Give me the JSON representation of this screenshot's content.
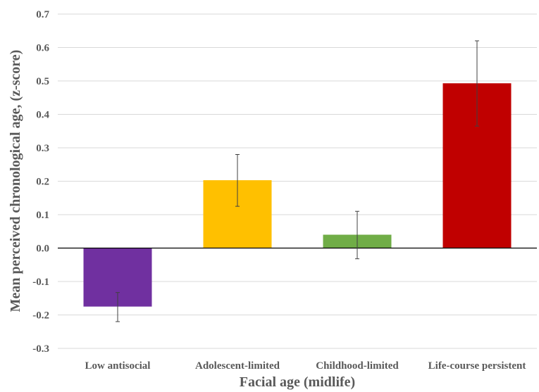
{
  "chart_data": {
    "type": "bar",
    "title": "",
    "xlabel": "Facial age (midlife)",
    "ylabel": "Mean perceived chronological age, (z-score)",
    "ylim": [
      -0.3,
      0.7
    ],
    "yticks": [
      0.7,
      0.6,
      0.5,
      0.4,
      0.3,
      0.2,
      0.1,
      0.0,
      -0.1,
      -0.2,
      -0.3
    ],
    "ytick_labels": [
      "0.7",
      "0.6",
      "0.5",
      "0.4",
      "0.3",
      "0.2",
      "0.1",
      "0.0",
      "-0.1",
      "-0.2",
      "-0.3"
    ],
    "grid": true,
    "categories": [
      "Low antisocial",
      "Adolescent-limited",
      "Childhood-limited",
      "Life-course persistent"
    ],
    "values": [
      -0.175,
      0.203,
      0.04,
      0.493
    ],
    "error_low": [
      -0.22,
      0.125,
      -0.032,
      0.365
    ],
    "error_high": [
      -0.133,
      0.28,
      0.11,
      0.62
    ],
    "colors": [
      "#7030a0",
      "#ffc000",
      "#70ad47",
      "#c00000"
    ]
  }
}
